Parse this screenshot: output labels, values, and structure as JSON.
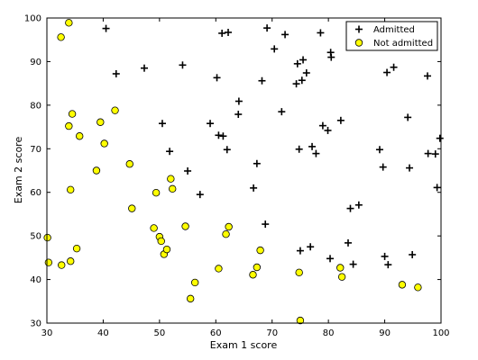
{
  "chart_data": {
    "type": "scatter",
    "xlabel": "Exam 1 score",
    "ylabel": "Exam 2 score",
    "xlim": [
      30,
      100
    ],
    "ylim": [
      30,
      100
    ],
    "xticks": [
      "30",
      "40",
      "50",
      "60",
      "70",
      "80",
      "90",
      "100"
    ],
    "yticks": [
      "30",
      "40",
      "50",
      "60",
      "70",
      "80",
      "90",
      "100"
    ],
    "legend_position": "top-right",
    "grid": false,
    "series": [
      {
        "name": "Admitted",
        "marker": "plus",
        "color": "#000000",
        "points": [
          [
            40.5,
            97.6
          ],
          [
            42.3,
            87.2
          ],
          [
            47.3,
            88.5
          ],
          [
            50.5,
            75.8
          ],
          [
            51.8,
            69.4
          ],
          [
            54.1,
            89.2
          ],
          [
            55.0,
            64.9
          ],
          [
            57.2,
            59.5
          ],
          [
            59.0,
            75.8
          ],
          [
            60.2,
            86.3
          ],
          [
            61.1,
            96.5
          ],
          [
            60.5,
            73.1
          ],
          [
            61.3,
            72.9
          ],
          [
            62.0,
            69.8
          ],
          [
            62.2,
            96.7
          ],
          [
            64.0,
            77.9
          ],
          [
            64.1,
            80.9
          ],
          [
            66.7,
            61.0
          ],
          [
            67.3,
            66.6
          ],
          [
            68.2,
            85.6
          ],
          [
            68.8,
            52.7
          ],
          [
            69.1,
            97.7
          ],
          [
            70.4,
            92.9
          ],
          [
            71.7,
            78.5
          ],
          [
            72.3,
            96.2
          ],
          [
            74.3,
            84.9
          ],
          [
            74.5,
            89.5
          ],
          [
            74.8,
            69.9
          ],
          [
            75.0,
            46.6
          ],
          [
            75.3,
            85.7
          ],
          [
            75.5,
            90.4
          ],
          [
            76.1,
            87.4
          ],
          [
            76.8,
            47.5
          ],
          [
            77.1,
            70.5
          ],
          [
            77.8,
            68.9
          ],
          [
            78.6,
            96.6
          ],
          [
            79.0,
            75.3
          ],
          [
            79.9,
            74.2
          ],
          [
            80.3,
            44.8
          ],
          [
            80.4,
            92.1
          ],
          [
            80.5,
            91.0
          ],
          [
            82.2,
            76.5
          ],
          [
            83.5,
            48.4
          ],
          [
            83.9,
            56.3
          ],
          [
            84.4,
            43.5
          ],
          [
            85.4,
            57.1
          ],
          [
            89.1,
            69.8
          ],
          [
            89.7,
            65.8
          ],
          [
            90.0,
            45.3
          ],
          [
            90.4,
            87.5
          ],
          [
            90.6,
            43.4
          ],
          [
            91.6,
            88.7
          ],
          [
            94.1,
            77.2
          ],
          [
            94.4,
            65.6
          ],
          [
            94.9,
            45.7
          ],
          [
            97.6,
            86.7
          ],
          [
            97.7,
            68.9
          ],
          [
            99.0,
            68.8
          ],
          [
            99.3,
            61.1
          ],
          [
            99.8,
            72.4
          ]
        ]
      },
      {
        "name": "Not admitted",
        "marker": "circle",
        "color": "#ffff00",
        "points": [
          [
            30.3,
            43.9
          ],
          [
            30.1,
            49.6
          ],
          [
            32.5,
            95.6
          ],
          [
            32.6,
            43.3
          ],
          [
            33.9,
            98.9
          ],
          [
            33.9,
            75.2
          ],
          [
            34.2,
            44.2
          ],
          [
            34.2,
            60.6
          ],
          [
            34.5,
            78.0
          ],
          [
            35.3,
            47.1
          ],
          [
            35.8,
            72.9
          ],
          [
            38.8,
            65.0
          ],
          [
            39.5,
            76.1
          ],
          [
            40.2,
            71.2
          ],
          [
            42.1,
            78.8
          ],
          [
            44.7,
            66.5
          ],
          [
            45.1,
            56.3
          ],
          [
            49.0,
            51.8
          ],
          [
            49.4,
            59.9
          ],
          [
            50.0,
            49.8
          ],
          [
            50.3,
            48.8
          ],
          [
            50.8,
            45.8
          ],
          [
            51.3,
            46.9
          ],
          [
            52.0,
            63.1
          ],
          [
            52.3,
            60.8
          ],
          [
            54.6,
            52.2
          ],
          [
            55.5,
            35.6
          ],
          [
            56.3,
            39.3
          ],
          [
            60.5,
            42.5
          ],
          [
            61.8,
            50.4
          ],
          [
            62.3,
            52.1
          ],
          [
            66.6,
            41.1
          ],
          [
            67.3,
            42.8
          ],
          [
            67.9,
            46.7
          ],
          [
            74.8,
            41.6
          ],
          [
            75.0,
            30.6
          ],
          [
            82.1,
            42.7
          ],
          [
            82.4,
            40.6
          ],
          [
            93.1,
            38.8
          ],
          [
            95.9,
            38.2
          ]
        ]
      }
    ]
  }
}
